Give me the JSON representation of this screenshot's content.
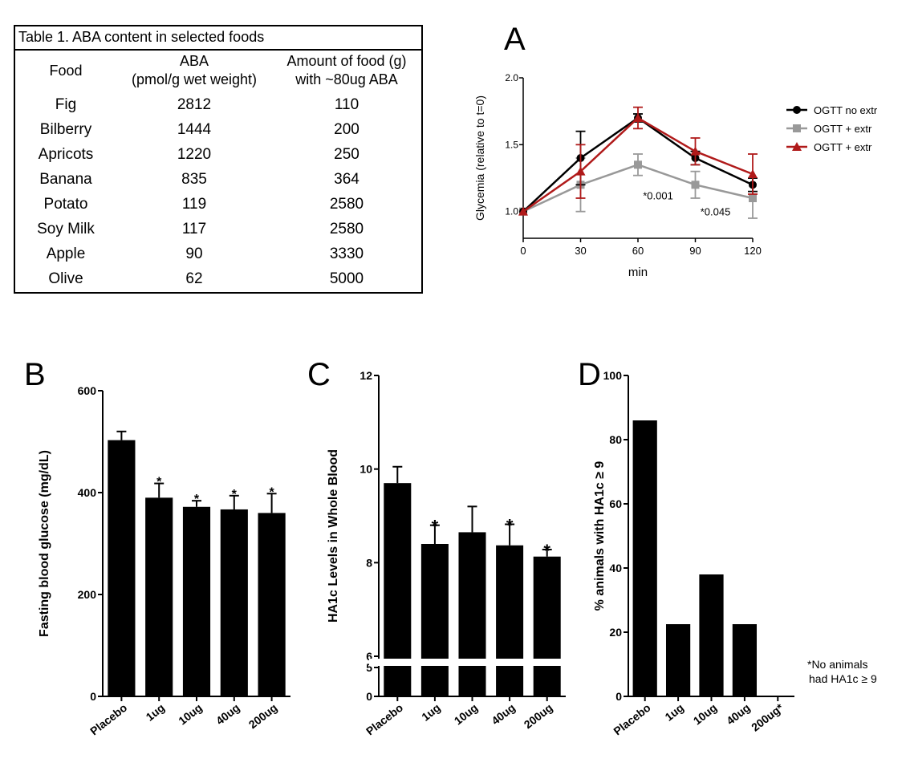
{
  "table": {
    "caption": "Table 1. ABA content in selected foods",
    "headers": {
      "food": "Food",
      "aba_line1": "ABA",
      "aba_line2": "(pmol/g wet weight)",
      "amount_line1": "Amount of food (g)",
      "amount_line2": "with ~80ug ABA"
    },
    "rows": [
      {
        "food": "Fig",
        "aba": "2812",
        "amount": "110"
      },
      {
        "food": "Bilberry",
        "aba": "1444",
        "amount": "200"
      },
      {
        "food": "Apricots",
        "aba": "1220",
        "amount": "250"
      },
      {
        "food": "Banana",
        "aba": "835",
        "amount": "364"
      },
      {
        "food": "Potato",
        "aba": "119",
        "amount": "2580"
      },
      {
        "food": "Soy Milk",
        "aba": "117",
        "amount": "2580"
      },
      {
        "food": "Apple",
        "aba": "90",
        "amount": "3330"
      },
      {
        "food": "Olive",
        "aba": "62",
        "amount": "5000"
      }
    ]
  },
  "chart_data": [
    {
      "panel": "A",
      "type": "line",
      "xlabel": "min",
      "ylabel": "Glycemia (relative to t=0)",
      "x": [
        0,
        30,
        60,
        90,
        120
      ],
      "xlim": [
        0,
        120
      ],
      "ylim": [
        0.8,
        2.0
      ],
      "yticks": [
        1.0,
        1.5,
        2.0
      ],
      "yticklabels": [
        "1.0",
        "1.5",
        "2.0"
      ],
      "legend_position": "right",
      "series": [
        {
          "name": "OGTT no extr",
          "color": "#000000",
          "marker": "circle",
          "values": [
            1.0,
            1.4,
            1.7,
            1.4,
            1.2
          ],
          "errors": [
            0.0,
            0.2,
            0.03,
            0.05,
            0.05
          ]
        },
        {
          "name": "OGTT + extr",
          "color": "#999999",
          "marker": "square",
          "values": [
            1.0,
            1.2,
            1.35,
            1.2,
            1.1
          ],
          "errors": [
            0.0,
            0.2,
            0.08,
            0.1,
            0.15
          ]
        },
        {
          "name": "OGTT + extr",
          "color": "#b01a1a",
          "marker": "triangle",
          "values": [
            1.0,
            1.3,
            1.7,
            1.45,
            1.28
          ],
          "errors": [
            0.0,
            0.2,
            0.08,
            0.1,
            0.15
          ]
        }
      ],
      "annotations": [
        {
          "text": "*0.001",
          "x": 60,
          "y": 1.09
        },
        {
          "text": "*0.045",
          "x": 90,
          "y": 0.97
        }
      ]
    },
    {
      "panel": "B",
      "type": "bar",
      "ylabel": "Fasting blood glucose (mg/dL)",
      "categories": [
        "Placebo",
        "1ug",
        "10ug",
        "40ug",
        "200ug"
      ],
      "values": [
        503,
        390,
        372,
        367,
        360
      ],
      "errors": [
        17,
        28,
        12,
        27,
        38
      ],
      "significance": [
        "",
        "*",
        "*",
        "*",
        "*"
      ],
      "ylim": [
        0,
        600
      ],
      "yticks": [
        0,
        200,
        400,
        600
      ]
    },
    {
      "panel": "C",
      "type": "bar",
      "ylabel": "HA1c Levels in  Whole Blood",
      "categories": [
        "Placebo",
        "1ug",
        "10ug",
        "40ug",
        "200ug"
      ],
      "values": [
        9.7,
        8.4,
        8.65,
        8.37,
        8.13
      ],
      "errors": [
        0.35,
        0.4,
        0.55,
        0.45,
        0.15
      ],
      "significance": [
        "",
        "*",
        "",
        "*",
        "*"
      ],
      "axis_break": [
        5,
        6
      ],
      "ylim": [
        0,
        12
      ],
      "yticks": [
        0,
        5,
        6,
        8,
        10,
        12
      ]
    },
    {
      "panel": "D",
      "type": "bar",
      "ylabel": "% animals with HA1c ≥ 9",
      "categories": [
        "Placebo",
        "1ug",
        "10ug",
        "40ug",
        "200ug*"
      ],
      "values": [
        86,
        22.5,
        38,
        22.5,
        0
      ],
      "ylim": [
        0,
        100
      ],
      "yticks": [
        0,
        20,
        40,
        60,
        80,
        100
      ],
      "note_line1": "*No animals",
      "note_line2": "had  HA1c ≥ 9"
    }
  ]
}
